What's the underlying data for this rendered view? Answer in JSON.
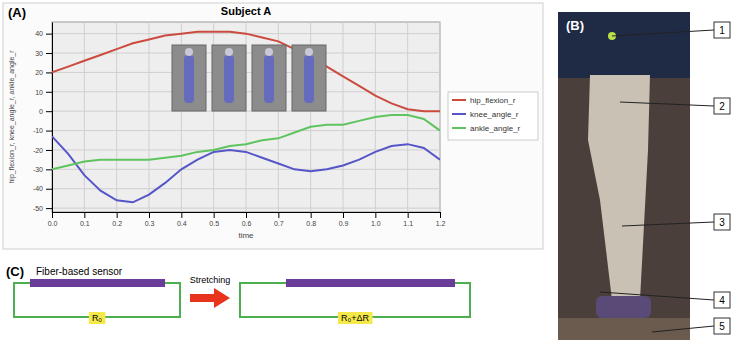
{
  "chart_data": {
    "type": "line",
    "label": "(A)",
    "title": "Subject A",
    "x_label": "time",
    "y_label": "hip_flexion_r, knee_angle_r, ankle_angle_r",
    "x": [
      0,
      0.05,
      0.1,
      0.15,
      0.2,
      0.25,
      0.3,
      0.35,
      0.4,
      0.45,
      0.5,
      0.55,
      0.6,
      0.65,
      0.7,
      0.75,
      0.8,
      0.85,
      0.9,
      0.95,
      1.0,
      1.05,
      1.1,
      1.15,
      1.2
    ],
    "series": [
      {
        "name": "hip_flexion_r",
        "color": "#cc4b3f",
        "values": [
          20,
          23,
          26,
          29,
          32,
          35,
          37,
          39,
          40,
          41,
          41,
          41,
          40,
          38,
          36,
          32,
          28,
          23,
          18,
          13,
          8,
          4,
          1,
          0,
          0
        ]
      },
      {
        "name": "knee_angle_r",
        "color": "#5656c8",
        "values": [
          -13,
          -22,
          -33,
          -41,
          -46,
          -47,
          -43,
          -37,
          -30,
          -25,
          -21,
          -20,
          -21,
          -24,
          -27,
          -30,
          -31,
          -30,
          -28,
          -25,
          -21,
          -18,
          -17,
          -19,
          -25
        ]
      },
      {
        "name": "ankle_angle_r",
        "color": "#5fc45f",
        "values": [
          -30,
          -28,
          -26,
          -25,
          -25,
          -25,
          -25,
          -24,
          -23,
          -21,
          -20,
          -18,
          -17,
          -15,
          -14,
          -11,
          -8,
          -7,
          -7,
          -5,
          -3,
          -2,
          -2,
          -4,
          -10
        ]
      }
    ],
    "xlim": [
      0,
      1.2
    ],
    "xticks": [
      {
        "value": 0,
        "label": "0.0"
      },
      {
        "value": 0.1,
        "label": "0.1"
      },
      {
        "value": 0.2,
        "label": "0.2"
      },
      {
        "value": 0.3,
        "label": "0.3"
      },
      {
        "value": 0.4,
        "label": "0.4"
      },
      {
        "value": 0.5,
        "label": "0.5"
      },
      {
        "value": 0.6,
        "label": "0.6"
      },
      {
        "value": 0.7,
        "label": "0.7"
      },
      {
        "value": 0.8,
        "label": "0.8"
      },
      {
        "value": 0.9,
        "label": "0.9"
      },
      {
        "value": 1.0,
        "label": "1.0"
      },
      {
        "value": 1.1,
        "label": "1.1"
      },
      {
        "value": 1.2,
        "label": "1.2"
      }
    ],
    "ylim": [
      -52,
      46
    ],
    "yticks": [
      -50,
      -40,
      -30,
      -20,
      -10,
      0,
      10,
      20,
      30,
      40
    ],
    "grid": true,
    "legend": "right"
  },
  "photo": {
    "label": "(B)",
    "callouts": [
      1,
      2,
      3,
      4,
      5
    ]
  },
  "diagram": {
    "label": "(C)",
    "sensor_label": "Fiber-based sensor",
    "arrow_label": "Stretching",
    "before": {
      "resistor": "R₀"
    },
    "after": {
      "resistor": "R₀+ΔR"
    }
  }
}
